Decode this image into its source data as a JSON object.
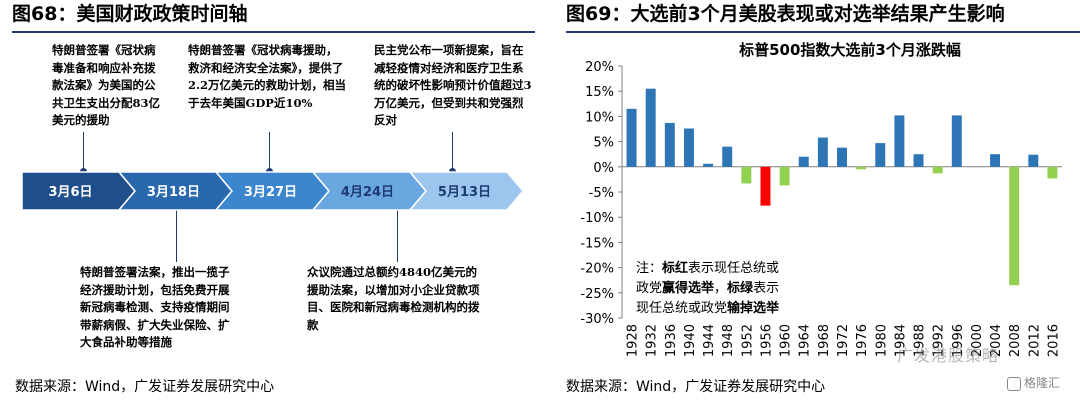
{
  "left": {
    "title": "图68：美国财政政策时间轴",
    "source": "数据来源：Wind，广发证券发展研究中心",
    "timeline": [
      {
        "date": "3月6日",
        "color": "#1f4e8c"
      },
      {
        "date": "3月18日",
        "color": "#2a68ad"
      },
      {
        "date": "3月27日",
        "color": "#3b86cd"
      },
      {
        "date": "4月24日",
        "color": "#6aa6df"
      },
      {
        "date": "5月13日",
        "color": "#9cc6ee"
      }
    ],
    "notes": {
      "n1": "特朗普签署《冠状病毒准备和响应补充拨款法案》为美国的公共卫生支出分配83亿美元的援助",
      "n2": "特朗普签署《冠状病毒援助，救济和经济安全法案》，提供了2.2万亿美元的救助计划，相当于去年美国GDP近10%",
      "n3": "民主党公布一项新提案，旨在减轻疫情对经济和医疗卫生系统的破坏性影响预计价值超过3万亿美元，但受到共和党强烈反对",
      "n4": "特朗普签署法案，推出一揽子经济援助计划，包括免费开展新冠病毒检测、支持疫情期间带薪病假、扩大失业保险、扩大食品补助等措施",
      "n5": "众议院通过总额约4840亿美元的援助法案，以增加对小企业贷款项目、医院和新冠病毒检测机构的拨款"
    }
  },
  "right": {
    "title": "图69：大选前3个月美股表现或对选举结果产生影响",
    "source": "数据来源：Wind，广发证券发展研究中心",
    "watermark": "广发港股策略",
    "logo_text": "格隆汇",
    "annotation": [
      "注：标红表示现任总统或",
      "政党赢得选举，标绿表示",
      "现任总统或政党输掉选举"
    ],
    "colors": {
      "default": "#2e75b6",
      "red": "#ff0000",
      "green": "#92d050"
    },
    "chart_data": {
      "type": "bar",
      "title": "标普500指数大选前3个月涨跌幅",
      "categories": [
        "1928",
        "1932",
        "1936",
        "1940",
        "1944",
        "1948",
        "1952",
        "1956",
        "1960",
        "1964",
        "1968",
        "1972",
        "1976",
        "1980",
        "1984",
        "1988",
        "1992",
        "1996",
        "2000",
        "2004",
        "2008",
        "2012",
        "2016"
      ],
      "values": [
        11.5,
        15.5,
        8.7,
        7.6,
        0.6,
        4.0,
        -3.3,
        -7.7,
        -3.7,
        2.0,
        5.8,
        3.8,
        -0.5,
        4.7,
        10.2,
        2.5,
        -1.3,
        10.2,
        0.0,
        2.5,
        -23.5,
        2.4,
        -2.3
      ],
      "bar_colors": [
        "default",
        "default",
        "default",
        "default",
        "default",
        "default",
        "green",
        "red",
        "green",
        "default",
        "default",
        "default",
        "green",
        "default",
        "default",
        "default",
        "green",
        "default",
        "default",
        "default",
        "green",
        "default",
        "green"
      ],
      "ylim": [
        -30,
        20
      ],
      "yticks": [
        "20%",
        "15%",
        "10%",
        "5%",
        "0%",
        "-5%",
        "-10%",
        "-15%",
        "-20%",
        "-25%",
        "-30%"
      ],
      "ytick_values": [
        20,
        15,
        10,
        5,
        0,
        -5,
        -10,
        -15,
        -20,
        -25,
        -30
      ]
    }
  }
}
